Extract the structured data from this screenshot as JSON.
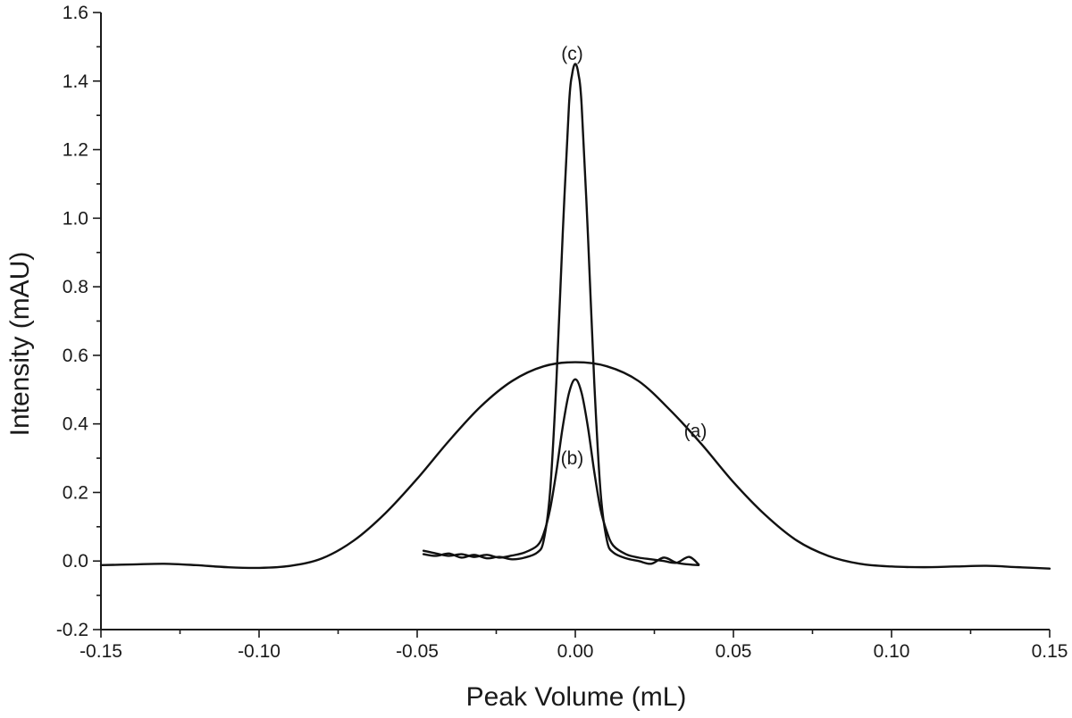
{
  "chart_data": {
    "type": "line",
    "title": "",
    "xlabel": "Peak Volume (mL)",
    "ylabel": "Intensity (mAU)",
    "xlim": [
      -0.15,
      0.15
    ],
    "ylim": [
      -0.2,
      1.6
    ],
    "xticks": [
      -0.15,
      -0.1,
      -0.05,
      0.0,
      0.05,
      0.1,
      0.15
    ],
    "xtick_labels": [
      "-0.15",
      "-0.10",
      "-0.05",
      "0.00",
      "0.05",
      "0.10",
      "0.15"
    ],
    "yticks": [
      -0.2,
      0.0,
      0.2,
      0.4,
      0.6,
      0.8,
      1.0,
      1.2,
      1.4,
      1.6
    ],
    "ytick_labels": [
      "-0.2",
      "0.0",
      "0.2",
      "0.4",
      "0.6",
      "0.8",
      "1.0",
      "1.2",
      "1.4",
      "1.6"
    ],
    "grid": false,
    "series": [
      {
        "name": "(a)",
        "label_at": [
          0.038,
          0.38
        ],
        "x": [
          -0.15,
          -0.14,
          -0.13,
          -0.12,
          -0.11,
          -0.1,
          -0.09,
          -0.08,
          -0.07,
          -0.06,
          -0.05,
          -0.04,
          -0.03,
          -0.02,
          -0.01,
          0.0,
          0.01,
          0.02,
          0.03,
          0.04,
          0.05,
          0.06,
          0.07,
          0.08,
          0.09,
          0.1,
          0.11,
          0.12,
          0.13,
          0.14,
          0.15
        ],
        "y": [
          -0.012,
          -0.01,
          -0.008,
          -0.012,
          -0.018,
          -0.02,
          -0.014,
          0.008,
          0.06,
          0.14,
          0.24,
          0.35,
          0.45,
          0.525,
          0.568,
          0.58,
          0.568,
          0.525,
          0.44,
          0.34,
          0.23,
          0.135,
          0.06,
          0.015,
          -0.008,
          -0.016,
          -0.018,
          -0.016,
          -0.014,
          -0.018,
          -0.022
        ]
      },
      {
        "name": "(b)",
        "label_at": [
          -0.001,
          0.3
        ],
        "x": [
          -0.048,
          -0.044,
          -0.04,
          -0.036,
          -0.032,
          -0.028,
          -0.024,
          -0.02,
          -0.016,
          -0.012,
          -0.01,
          -0.008,
          -0.006,
          -0.004,
          -0.002,
          0.0,
          0.002,
          0.004,
          0.006,
          0.008,
          0.01,
          0.012,
          0.016,
          0.02,
          0.024,
          0.028,
          0.032,
          0.036,
          0.039
        ],
        "y": [
          0.03,
          0.022,
          0.015,
          0.02,
          0.012,
          0.018,
          0.01,
          0.016,
          0.025,
          0.045,
          0.08,
          0.15,
          0.26,
          0.39,
          0.49,
          0.53,
          0.49,
          0.39,
          0.26,
          0.15,
          0.085,
          0.045,
          0.02,
          0.01,
          0.005,
          0.0,
          -0.005,
          0.012,
          -0.01
        ]
      },
      {
        "name": "(c)",
        "label_at": [
          -0.001,
          1.48
        ],
        "x": [
          -0.048,
          -0.044,
          -0.04,
          -0.036,
          -0.032,
          -0.028,
          -0.024,
          -0.02,
          -0.016,
          -0.012,
          -0.01,
          -0.008,
          -0.006,
          -0.004,
          -0.002,
          -0.001,
          0.0,
          0.001,
          0.002,
          0.004,
          0.006,
          0.008,
          0.01,
          0.012,
          0.016,
          0.02,
          0.024,
          0.028,
          0.032,
          0.036,
          0.039
        ],
        "y": [
          0.02,
          0.015,
          0.022,
          0.01,
          0.018,
          0.008,
          0.012,
          0.005,
          0.01,
          0.025,
          0.06,
          0.2,
          0.52,
          0.95,
          1.33,
          1.42,
          1.45,
          1.42,
          1.33,
          0.95,
          0.52,
          0.2,
          0.06,
          0.025,
          0.008,
          0.0,
          -0.008,
          0.01,
          -0.005,
          -0.01,
          -0.012
        ]
      }
    ]
  }
}
